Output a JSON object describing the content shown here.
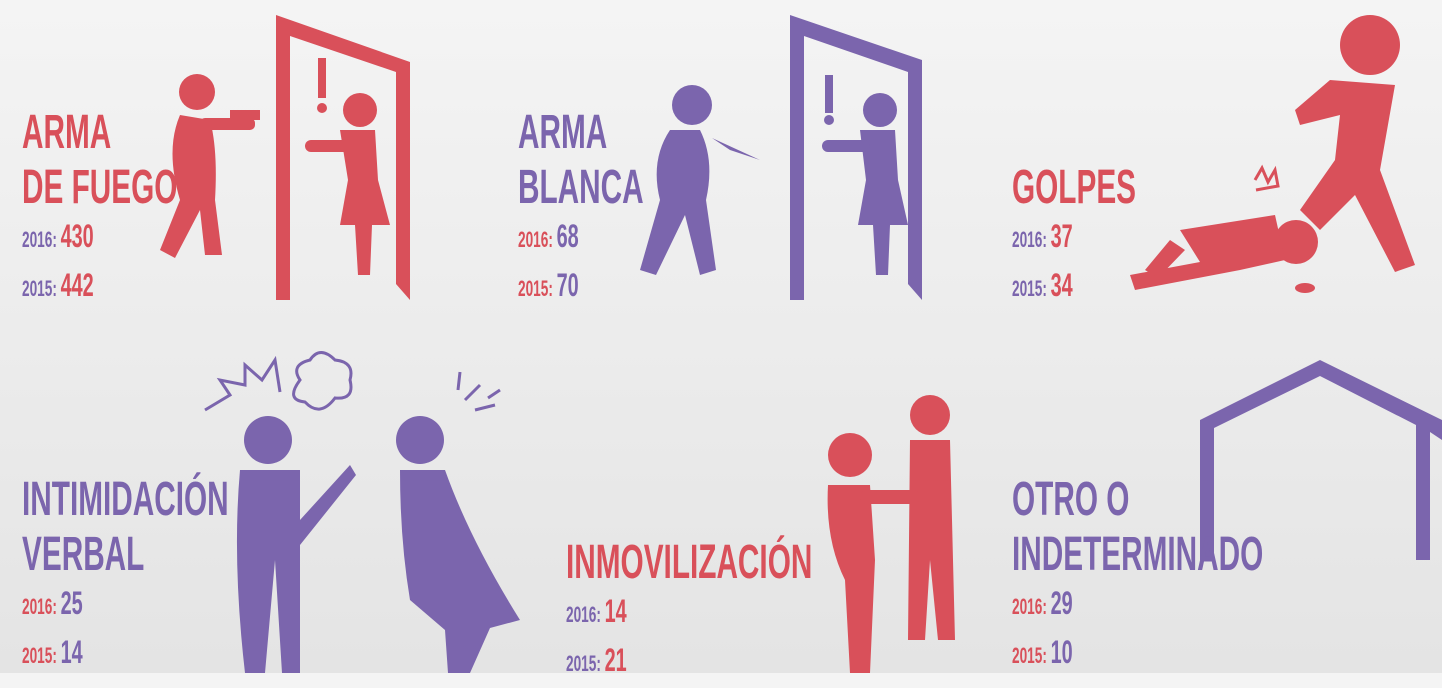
{
  "items": [
    {
      "title": [
        "ARMA",
        "DE FUEGO"
      ],
      "color": "#d9505a",
      "label_color": "#7b65ad",
      "rows": [
        {
          "label": "2016:",
          "value": 430
        },
        {
          "label": "2015:",
          "value": 442
        }
      ]
    },
    {
      "title": [
        "ARMA",
        "BLANCA"
      ],
      "color": "#7b65ad",
      "label_color": "#d9505a",
      "rows": [
        {
          "label": "2016:",
          "value": 68
        },
        {
          "label": "2015:",
          "value": 70
        }
      ]
    },
    {
      "title": [
        "GOLPES"
      ],
      "color": "#d9505a",
      "label_color": "#7b65ad",
      "rows": [
        {
          "label": "2016:",
          "value": 37
        },
        {
          "label": "2015:",
          "value": 34
        }
      ]
    },
    {
      "title": [
        "INTIMIDACIÓN",
        "VERBAL"
      ],
      "color": "#7b65ad",
      "label_color": "#d9505a",
      "rows": [
        {
          "label": "2016:",
          "value": 25
        },
        {
          "label": "2015:",
          "value": 14
        }
      ]
    },
    {
      "title": [
        "INMOVILIZACIÓN"
      ],
      "color": "#d9505a",
      "label_color": "#7b65ad",
      "rows": [
        {
          "label": "2016:",
          "value": 14
        },
        {
          "label": "2015:",
          "value": 21
        }
      ]
    },
    {
      "title": [
        "OTRO O",
        "INDETERMINADO"
      ],
      "color": "#7b65ad",
      "label_color": "#d9505a",
      "rows": [
        {
          "label": "2016:",
          "value": 29
        },
        {
          "label": "2015:",
          "value": 10
        }
      ]
    }
  ]
}
